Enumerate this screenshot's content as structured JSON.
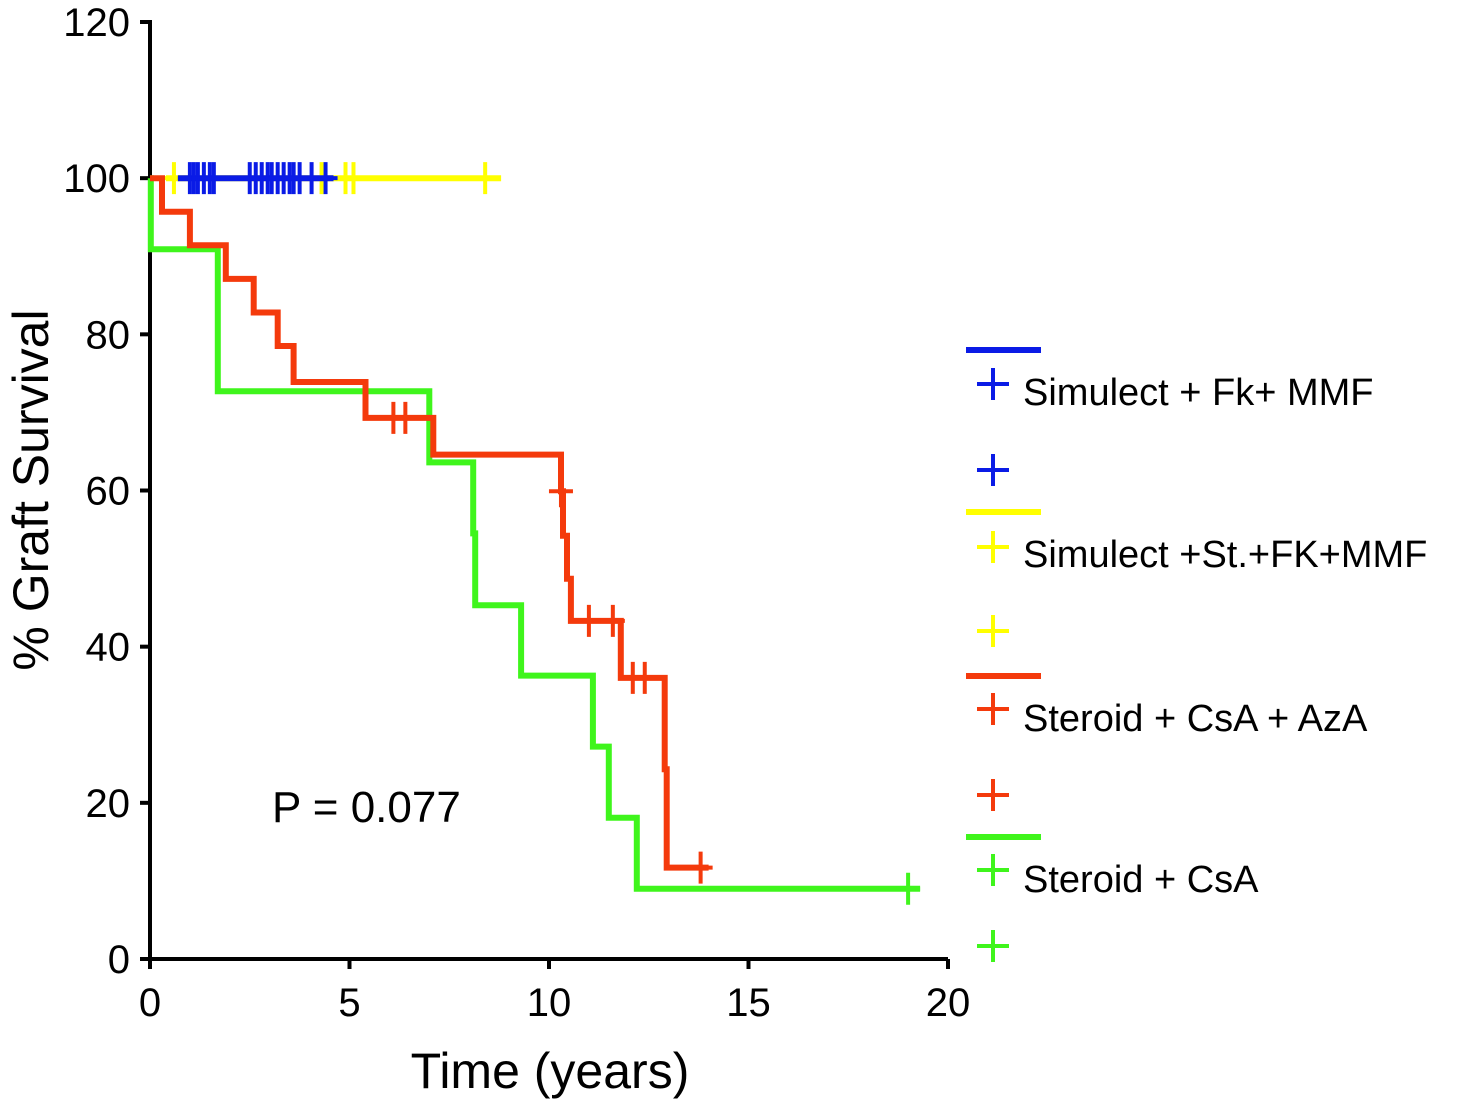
{
  "chart_data": {
    "type": "line",
    "subtype": "kaplan-meier",
    "title": "",
    "xlabel": "Time (years)",
    "ylabel": "% Graft Survival",
    "xlim": [
      0,
      20
    ],
    "ylim": [
      0,
      120
    ],
    "xticks": [
      0,
      5,
      10,
      15,
      20
    ],
    "yticks": [
      0,
      20,
      40,
      60,
      80,
      100,
      120
    ],
    "annotation": "P = 0.077",
    "series": [
      {
        "name": "Simulect + Fk+ MMF",
        "color": "#0a1be6",
        "steps": [
          [
            0.7,
            100
          ],
          [
            4.6,
            100
          ]
        ],
        "censored": [
          [
            1.0,
            100
          ],
          [
            1.1,
            100
          ],
          [
            1.2,
            100
          ],
          [
            1.35,
            100
          ],
          [
            1.5,
            100
          ],
          [
            1.6,
            100
          ],
          [
            2.5,
            100
          ],
          [
            2.65,
            100
          ],
          [
            2.8,
            100
          ],
          [
            2.95,
            100
          ],
          [
            3.05,
            100
          ],
          [
            3.2,
            100
          ],
          [
            3.35,
            100
          ],
          [
            3.5,
            100
          ],
          [
            3.6,
            100
          ],
          [
            3.75,
            100
          ],
          [
            4.05,
            100
          ],
          [
            4.4,
            100
          ]
        ]
      },
      {
        "name": "Simulect +St.+FK+MMF",
        "color": "#ffff00",
        "steps": [
          [
            0.4,
            100
          ],
          [
            8.8,
            100
          ]
        ],
        "censored": [
          [
            0.6,
            100
          ],
          [
            4.3,
            100
          ],
          [
            4.9,
            100
          ],
          [
            5.1,
            100
          ],
          [
            8.4,
            100
          ]
        ]
      },
      {
        "name": "Steroid + CsA + AzA",
        "color": "#f43a0c",
        "steps": [
          [
            0,
            100
          ],
          [
            0.3,
            95.7
          ],
          [
            1.0,
            91.4
          ],
          [
            1.9,
            87.1
          ],
          [
            2.6,
            82.8
          ],
          [
            3.2,
            78.5
          ],
          [
            3.6,
            73.9
          ],
          [
            5.4,
            69.3
          ],
          [
            7.1,
            64.6
          ],
          [
            10.3,
            59.9
          ],
          [
            10.35,
            54.2
          ],
          [
            10.45,
            48.7
          ],
          [
            10.55,
            43.3
          ],
          [
            11.8,
            36
          ],
          [
            12.9,
            24.3
          ],
          [
            12.95,
            11.7
          ],
          [
            14,
            11.7
          ]
        ],
        "censored": [
          [
            6.1,
            69.3
          ],
          [
            6.4,
            69.3
          ],
          [
            10.3,
            59.9
          ],
          [
            11.0,
            43.3
          ],
          [
            11.6,
            43.3
          ],
          [
            12.1,
            36
          ],
          [
            12.4,
            36
          ],
          [
            13.8,
            11.7
          ]
        ]
      },
      {
        "name": "Steroid + CsA",
        "color": "#3ff51c",
        "steps": [
          [
            0,
            100
          ],
          [
            0.02,
            90.9
          ],
          [
            1.7,
            72.7
          ],
          [
            7.0,
            63.6
          ],
          [
            8.1,
            54.5
          ],
          [
            8.15,
            45.3
          ],
          [
            9.3,
            36.3
          ],
          [
            11.1,
            27.2
          ],
          [
            11.5,
            18.1
          ],
          [
            12.2,
            9.0
          ],
          [
            19.3,
            9.0
          ]
        ],
        "censored": [
          [
            19.0,
            9.0
          ]
        ]
      }
    ]
  }
}
